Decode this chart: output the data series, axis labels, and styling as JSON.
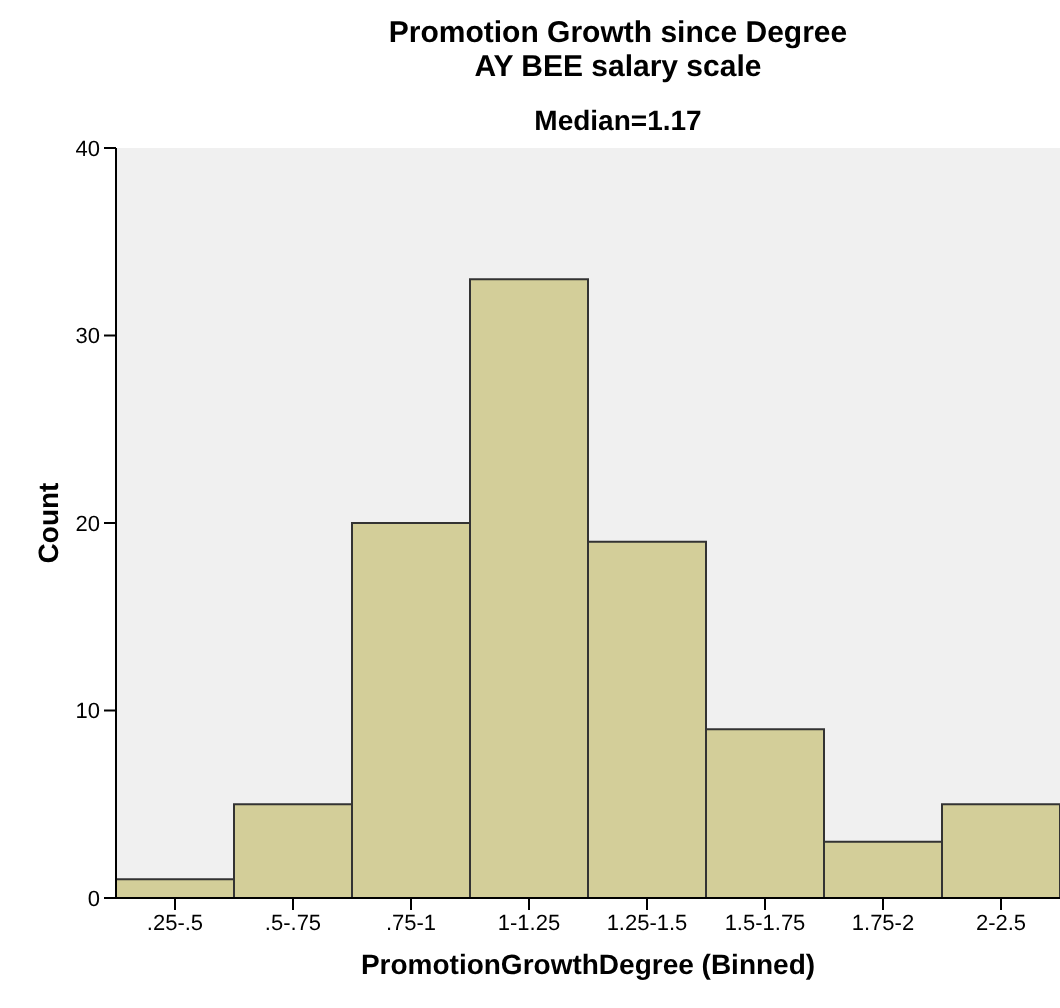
{
  "chart_data": {
    "type": "bar",
    "title": "Promotion Growth since Degree",
    "subtitle": "AY BEE salary scale",
    "annotations": [
      "Median=1.17"
    ],
    "xlabel": "PromotionGrowthDegree (Binned)",
    "ylabel": "Count",
    "categories": [
      ".25-.5",
      ".5-.75",
      ".75-1",
      "1-1.25",
      "1.25-1.5",
      "1.5-1.75",
      "1.75-2",
      "2-2.5"
    ],
    "values": [
      1,
      5,
      20,
      33,
      19,
      9,
      3,
      5
    ],
    "color": "#d3ce99",
    "ylim": [
      0,
      40
    ],
    "yticks": [
      0,
      10,
      20,
      30,
      40
    ],
    "grid": false,
    "legend": false
  }
}
